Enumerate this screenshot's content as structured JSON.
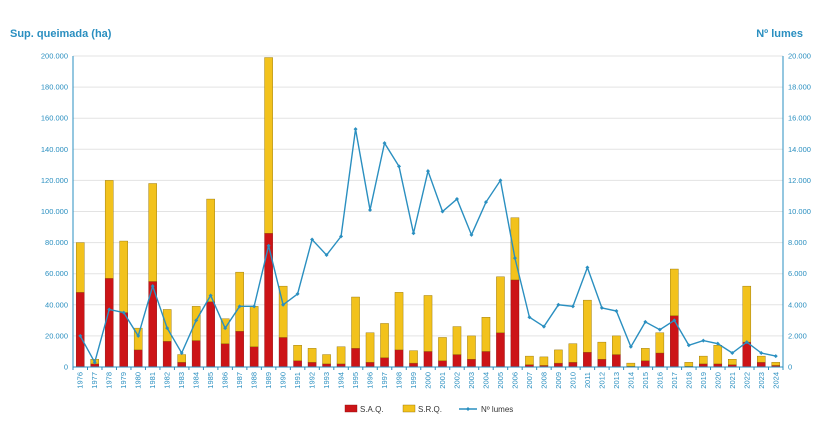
{
  "colors": {
    "sao": "#cc1417",
    "srq": "#f2c21c",
    "line": "#2a8fc0",
    "axis_text": "#2a8fc0",
    "grid": "#e3e3e3",
    "bar_stroke": "#8a6a00"
  },
  "chart_data": {
    "type": "bar",
    "stacked": true,
    "left_axis_title": "Sup. queimada (ha)",
    "right_axis_title": "Nº lumes",
    "ylim_left": [
      0,
      200000
    ],
    "ylim_right": [
      0,
      20000
    ],
    "left_ticks": [
      "0",
      "20.000",
      "40.000",
      "60.000",
      "80.000",
      "100.000",
      "120.000",
      "140.000",
      "160.000",
      "180.000",
      "200.000"
    ],
    "right_ticks": [
      "0",
      "2.000",
      "4.000",
      "6.000",
      "8.000",
      "10.000",
      "12.000",
      "14.000",
      "16.000",
      "18.000",
      "20.000"
    ],
    "grid": true,
    "legend_position": "bottom",
    "categories": [
      "1976",
      "1977",
      "1978",
      "1979",
      "1980",
      "1981",
      "1982",
      "1983",
      "1984",
      "1985",
      "1986",
      "1987",
      "1988",
      "1989",
      "1990",
      "1991",
      "1992",
      "1993",
      "1994",
      "1995",
      "1996",
      "1997",
      "1998",
      "1999",
      "2000",
      "2001",
      "2002",
      "2003",
      "2004",
      "2005",
      "2006",
      "2007",
      "2008",
      "2009",
      "2010",
      "2011",
      "2012",
      "2013",
      "2014",
      "2015",
      "2016",
      "2017",
      "2018",
      "2019",
      "2020",
      "2021",
      "2022",
      "2023",
      "2024"
    ],
    "series": [
      {
        "name": "S.A.Q.",
        "kind": "bar",
        "axis": "left",
        "values": [
          48000,
          2000,
          57000,
          35000,
          11000,
          55000,
          16500,
          3000,
          17000,
          42000,
          15000,
          23000,
          13000,
          86000,
          19000,
          4000,
          3000,
          2000,
          2000,
          12000,
          3000,
          6000,
          11000,
          2500,
          10000,
          4000,
          8000,
          5000,
          10000,
          22000,
          56000,
          1500,
          1000,
          2500,
          3000,
          9500,
          5000,
          8000,
          500,
          4000,
          9000,
          33000,
          500,
          2000,
          2000,
          1500,
          16000,
          3000,
          1000
        ]
      },
      {
        "name": "S.R.Q.",
        "kind": "bar",
        "axis": "left",
        "values": [
          32000,
          3000,
          63000,
          46000,
          14000,
          63000,
          20500,
          5000,
          22000,
          66000,
          16000,
          38000,
          26000,
          113000,
          33000,
          10000,
          9000,
          6000,
          11000,
          33000,
          19000,
          22000,
          37000,
          8000,
          36000,
          15000,
          18000,
          15000,
          22000,
          36000,
          40000,
          5500,
          5500,
          8500,
          12000,
          33500,
          11000,
          12000,
          2000,
          8000,
          13000,
          30000,
          2500,
          5000,
          12000,
          3500,
          36000,
          4000,
          2000
        ]
      },
      {
        "name": "Nº lumes",
        "kind": "line",
        "axis": "right",
        "values": [
          2000,
          300,
          3700,
          3500,
          2000,
          5200,
          2500,
          900,
          3000,
          4600,
          2500,
          3900,
          3900,
          7800,
          4000,
          4700,
          8200,
          7200,
          8400,
          15300,
          10100,
          14400,
          12900,
          8600,
          12600,
          10000,
          10800,
          8500,
          10600,
          12000,
          7000,
          3200,
          2600,
          4000,
          3900,
          6400,
          3800,
          3600,
          1300,
          2900,
          2400,
          3000,
          1400,
          1700,
          1500,
          900,
          1600,
          900,
          700
        ]
      }
    ]
  }
}
